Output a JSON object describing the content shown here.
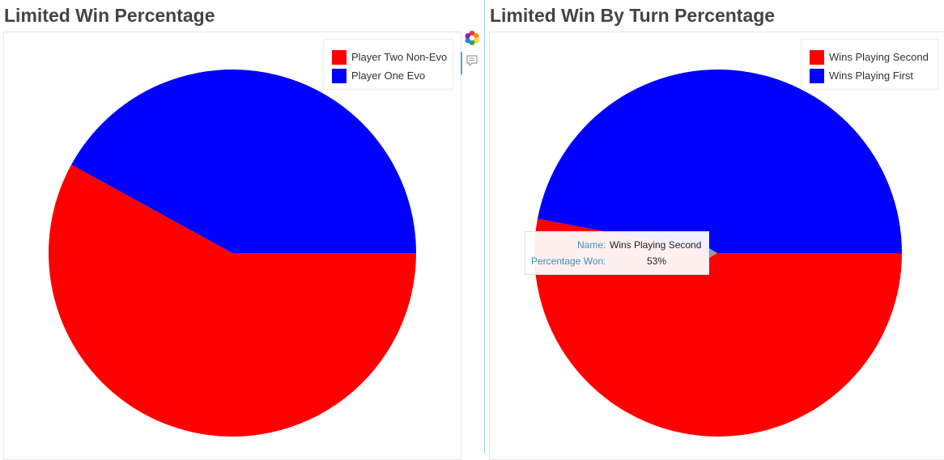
{
  "colors": {
    "red": "#ff0000",
    "blue": "#0000ff",
    "title": "#444444"
  },
  "icons": {
    "palette": "color-wheel-icon",
    "comment": "comment-icon"
  },
  "chart_data": [
    {
      "type": "pie",
      "title": "Limited Win Percentage",
      "legend_position": "top-right",
      "slices": [
        {
          "name": "Player Two Non-Evo",
          "value": 58,
          "color": "#ff0000"
        },
        {
          "name": "Player One Evo",
          "value": 42,
          "color": "#0000ff"
        }
      ]
    },
    {
      "type": "pie",
      "title": "Limited Win By Turn Percentage",
      "legend_position": "top-right",
      "slices": [
        {
          "name": "Wins Playing Second",
          "value": 53,
          "color": "#ff0000"
        },
        {
          "name": "Wins Playing First",
          "value": 47,
          "color": "#0000ff"
        }
      ]
    }
  ],
  "tooltip": {
    "name_key": "Name:",
    "name_value": "Wins Playing Second",
    "pct_key": "Percentage Won:",
    "pct_value": "53%"
  }
}
